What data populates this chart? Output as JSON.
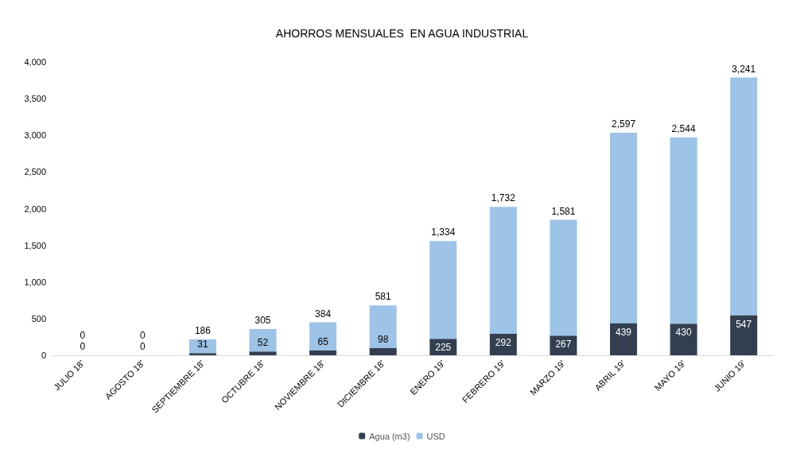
{
  "chart_data": {
    "type": "bar",
    "title": "AHORROS MENSUALES  EN AGUA INDUSTRIAL",
    "stacked": true,
    "categories": [
      "JULIO 18'",
      "AGOSTO 18'",
      "SEPTIEMBRE 18'",
      "OCTUBRE 18'",
      "NOVIEMBRE 18'",
      "DICIEMBRE 18'",
      "ENERO 19'",
      "FEBRERO 19'",
      "MARZO 19'",
      "ABRIL 19'",
      "MAYO 19'",
      "JUNIO 19'"
    ],
    "series": [
      {
        "name": "Agua (m3)",
        "color": "#333f50",
        "values": [
          0,
          0,
          31,
          52,
          65,
          98,
          225,
          292,
          267,
          439,
          430,
          547
        ],
        "value_labels": [
          "0",
          "0",
          "31",
          "52",
          "65",
          "98",
          "225",
          "292",
          "267",
          "439",
          "430",
          "547"
        ]
      },
      {
        "name": "USD",
        "color": "#9dc3e6",
        "values": [
          0,
          0,
          186,
          305,
          384,
          581,
          1334,
          1732,
          1581,
          2597,
          2544,
          3241
        ],
        "value_labels": [
          "0",
          "0",
          "186",
          "305",
          "384",
          "581",
          "1,334",
          "1,732",
          "1,581",
          "2,597",
          "2,544",
          "3,241"
        ]
      }
    ],
    "ylim": [
      0,
      4000
    ],
    "yticks": [
      0,
      500,
      {
        "value": 1000,
        "label": "1,000"
      },
      {
        "value": 1500,
        "label": "1,500"
      },
      {
        "value": 2000,
        "label": "2,000"
      },
      {
        "value": 2500,
        "label": "2,500"
      },
      {
        "value": 3000,
        "label": "3,000"
      },
      {
        "value": 3500,
        "label": "3,500"
      },
      {
        "value": 4000,
        "label": "4,000"
      }
    ],
    "grid": false,
    "legend": "bottom"
  }
}
